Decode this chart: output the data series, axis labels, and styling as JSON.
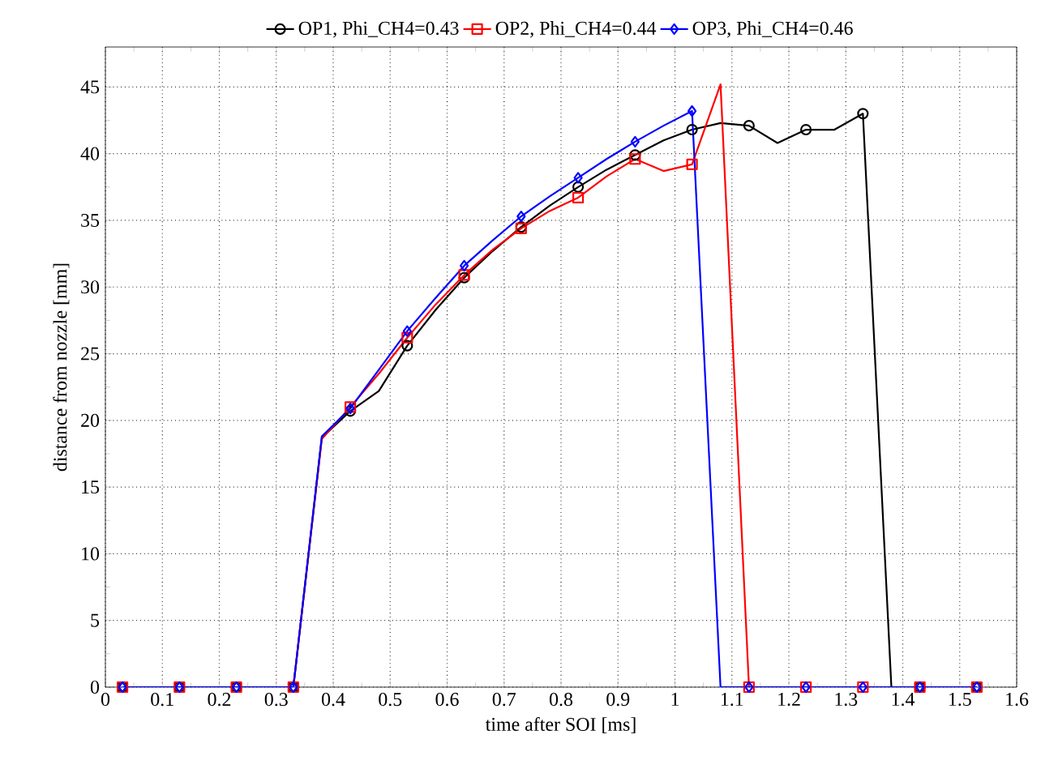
{
  "chart_data": {
    "type": "line",
    "xlabel": "time after SOI [ms]",
    "ylabel": "distance from nozzle [mm]",
    "x": [
      0.03,
      0.08,
      0.13,
      0.18,
      0.23,
      0.28,
      0.33,
      0.38,
      0.43,
      0.48,
      0.53,
      0.58,
      0.63,
      0.68,
      0.73,
      0.78,
      0.83,
      0.88,
      0.93,
      0.98,
      1.03,
      1.08,
      1.13,
      1.18,
      1.23,
      1.28,
      1.33,
      1.38,
      1.43,
      1.48,
      1.53
    ],
    "series": [
      {
        "name": "OP1, Phi_CH4=0.43",
        "color": "#000000",
        "marker": "circle",
        "values": [
          0,
          0,
          0,
          0,
          0,
          0,
          0,
          18.7,
          20.7,
          22.2,
          25.6,
          28.3,
          30.7,
          32.7,
          34.5,
          36.1,
          37.5,
          38.8,
          39.9,
          41.0,
          41.8,
          42.3,
          42.1,
          40.8,
          41.8,
          41.8,
          43.0,
          0,
          0,
          0,
          0
        ]
      },
      {
        "name": "OP2, Phi_CH4=0.44",
        "color": "#ff0000",
        "marker": "square",
        "values": [
          0,
          0,
          0,
          0,
          0,
          0,
          0,
          18.6,
          21.0,
          23.5,
          26.2,
          28.7,
          30.9,
          32.8,
          34.4,
          35.7,
          36.7,
          38.3,
          39.6,
          38.7,
          39.2,
          45.2,
          0,
          0,
          0,
          0,
          0,
          0,
          0,
          0,
          0
        ]
      },
      {
        "name": "OP3, Phi_CH4=0.46",
        "color": "#0000ff",
        "marker": "diamond",
        "values": [
          0,
          0,
          0,
          0,
          0,
          0,
          0,
          18.8,
          20.9,
          23.8,
          26.7,
          29.2,
          31.6,
          33.5,
          35.3,
          36.8,
          38.2,
          39.6,
          40.9,
          42.1,
          43.2,
          0,
          0,
          0,
          0,
          0,
          0,
          0,
          0,
          0,
          0
        ]
      }
    ],
    "xlim": [
      0,
      1.6
    ],
    "xticks": [
      0,
      0.1,
      0.2,
      0.3,
      0.4,
      0.5,
      0.6,
      0.7,
      0.8,
      0.9,
      1,
      1.1,
      1.2,
      1.3,
      1.4,
      1.5,
      1.6
    ],
    "ylim": [
      0,
      48
    ],
    "yticks": [
      0,
      5,
      10,
      15,
      20,
      25,
      30,
      35,
      40,
      45
    ],
    "grid": true,
    "legend": "top",
    "line_style": "solid"
  }
}
